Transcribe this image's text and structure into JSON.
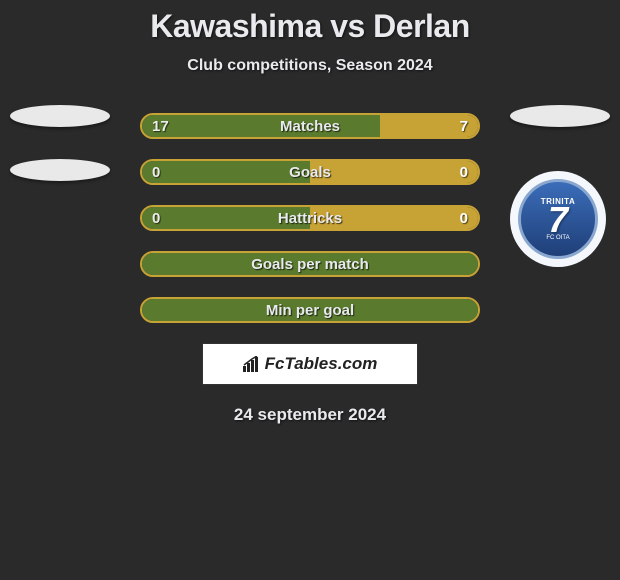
{
  "title": "Kawashima vs Derlan",
  "subtitle": "Club competitions, Season 2024",
  "colors": {
    "background": "#2a2a2a",
    "text": "#e8eaed",
    "bar_left": "#5a7a2d",
    "bar_right": "#c7a234",
    "bar_border": "#c7a234"
  },
  "stats": [
    {
      "label": "Matches",
      "left_value": "17",
      "right_value": "7",
      "left_pct": 70.8,
      "right_pct": 29.2
    },
    {
      "label": "Goals",
      "left_value": "0",
      "right_value": "0",
      "left_pct": 50,
      "right_pct": 50
    },
    {
      "label": "Hattricks",
      "left_value": "0",
      "right_value": "0",
      "left_pct": 50,
      "right_pct": 50
    },
    {
      "label": "Goals per match",
      "left_value": "",
      "right_value": "",
      "left_pct": 100,
      "right_pct": 0
    },
    {
      "label": "Min per goal",
      "left_value": "",
      "right_value": "",
      "left_pct": 100,
      "right_pct": 0
    }
  ],
  "right_badge": {
    "main": "7",
    "top": "TRINITA",
    "sub": "FC OITA"
  },
  "branding": "FcTables.com",
  "date": "24 september 2024"
}
